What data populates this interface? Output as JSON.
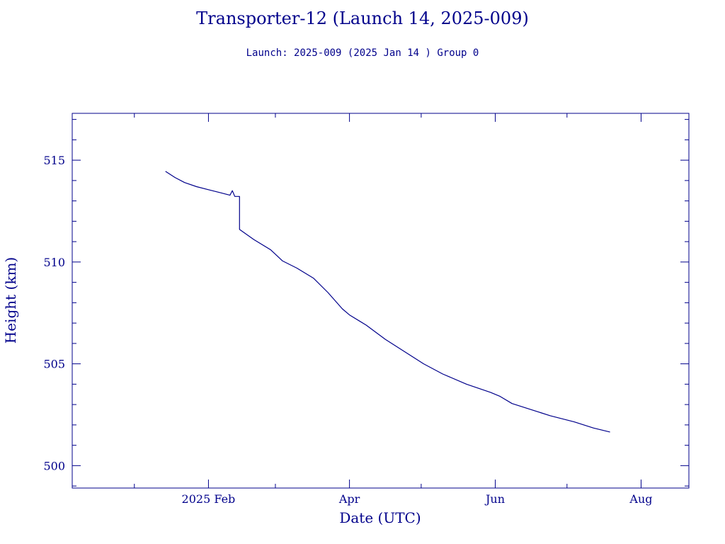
{
  "chart_data": {
    "type": "line",
    "title": "Transporter-12 (Launch 14, 2025-009)",
    "subtitle": "Launch: 2025-009  (2025 Jan 14 )  Group 0",
    "xlabel": "Date (UTC)",
    "ylabel": "Height (km)",
    "x_tick_labels": [
      {
        "date": "2025-02-01",
        "label": "2025 Feb"
      },
      {
        "date": "2025-04-01",
        "label": "Apr"
      },
      {
        "date": "2025-06-01",
        "label": "Jun"
      },
      {
        "date": "2025-08-01",
        "label": "Aug"
      }
    ],
    "y_ticks": [
      500,
      505,
      510,
      515
    ],
    "xlim": [
      "2024-12-06",
      "2025-08-21"
    ],
    "ylim": [
      498.9,
      517.3
    ],
    "color": "#00008b",
    "series": [
      {
        "points": [
          [
            "2025-01-14",
            514.45
          ],
          [
            "2025-01-18",
            514.15
          ],
          [
            "2025-01-22",
            513.9
          ],
          [
            "2025-01-27",
            513.7
          ],
          [
            "2025-02-01",
            513.55
          ],
          [
            "2025-02-06",
            513.4
          ],
          [
            "2025-02-10",
            513.28
          ],
          [
            "2025-02-11",
            513.5
          ],
          [
            "2025-02-12",
            513.22
          ],
          [
            "2025-02-13",
            513.22
          ],
          [
            "2025-02-14",
            513.22
          ],
          [
            "2025-02-14",
            511.6
          ],
          [
            "2025-02-20",
            511.1
          ],
          [
            "2025-02-27",
            510.6
          ],
          [
            "2025-03-04",
            510.05
          ],
          [
            "2025-03-10",
            509.7
          ],
          [
            "2025-03-17",
            509.2
          ],
          [
            "2025-03-23",
            508.5
          ],
          [
            "2025-03-29",
            507.7
          ],
          [
            "2025-04-01",
            507.4
          ],
          [
            "2025-04-08",
            506.9
          ],
          [
            "2025-04-16",
            506.2
          ],
          [
            "2025-04-24",
            505.6
          ],
          [
            "2025-05-02",
            505.0
          ],
          [
            "2025-05-10",
            504.5
          ],
          [
            "2025-05-20",
            504.0
          ],
          [
            "2025-05-30",
            503.6
          ],
          [
            "2025-06-03",
            503.4
          ],
          [
            "2025-06-08",
            503.05
          ],
          [
            "2025-06-16",
            502.75
          ],
          [
            "2025-06-24",
            502.45
          ],
          [
            "2025-07-04",
            502.15
          ],
          [
            "2025-07-12",
            501.85
          ],
          [
            "2025-07-19",
            501.65
          ]
        ]
      }
    ]
  }
}
